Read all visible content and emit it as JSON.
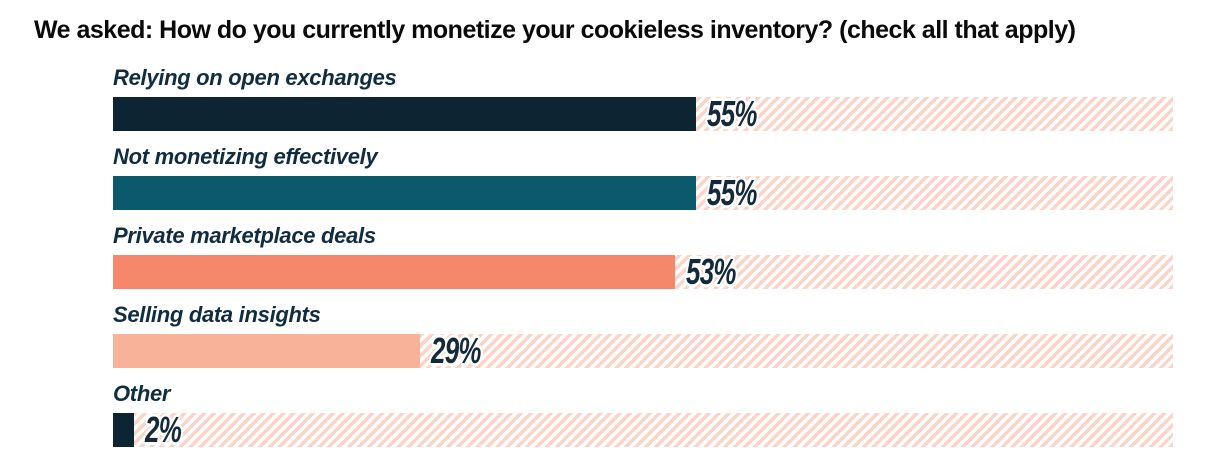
{
  "page": {
    "background": "#ffffff"
  },
  "title": "We asked: How do you currently monetize your cookieless inventory? (check all that apply)",
  "chart_data": {
    "type": "bar",
    "orientation": "horizontal",
    "title": "We asked: How do you currently monetize your cookieless inventory? (check all that apply)",
    "categories": [
      "Relying on open exchanges",
      "Not monetizing effectively",
      "Private marketplace deals",
      "Selling data insights",
      "Other"
    ],
    "values": [
      55,
      55,
      53,
      29,
      2
    ],
    "value_labels": [
      "55%",
      "55%",
      "53%",
      "29%",
      "2%"
    ],
    "unit": "%",
    "xlim": [
      0,
      100
    ],
    "bar_colors": [
      "#0d2433",
      "#0a5a6b",
      "#f5876a",
      "#f9b29a",
      "#0d2433"
    ],
    "track_stripe_color": "#fbd4c8",
    "track_background": "#ffffff",
    "label_color": "#102c41",
    "value_label_color": "#14293a",
    "grid": false,
    "legend": false
  }
}
